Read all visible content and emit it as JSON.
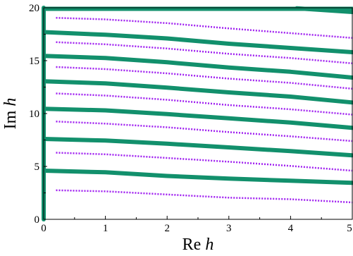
{
  "colors": {
    "solid": "#12906c",
    "dotted": "#a020f0",
    "axis": "#000000"
  },
  "chart_data": {
    "type": "line",
    "xlim": [
      0,
      5
    ],
    "ylim": [
      0,
      20
    ],
    "xticks": [
      0,
      1,
      2,
      3,
      4,
      5
    ],
    "yticks": [
      0,
      5,
      10,
      15,
      20
    ],
    "xlabel": {
      "main": "Re ",
      "var": "h"
    },
    "ylabel": {
      "main": "Im ",
      "var": "h"
    },
    "grid": false,
    "series": [
      {
        "style": "solid",
        "points": [
          [
            0,
            0
          ],
          [
            0,
            20
          ]
        ]
      },
      {
        "style": "solid",
        "points": [
          [
            0,
            19.9
          ],
          [
            5,
            19.9
          ]
        ]
      },
      {
        "style": "solid",
        "points": [
          [
            4.1,
            19.95
          ],
          [
            5,
            19.6
          ]
        ]
      },
      {
        "style": "solid",
        "points": [
          [
            0,
            17.7
          ],
          [
            1,
            17.45
          ],
          [
            2,
            17.1
          ],
          [
            3,
            16.6
          ],
          [
            4,
            16.2
          ],
          [
            5,
            15.8
          ]
        ]
      },
      {
        "style": "solid",
        "points": [
          [
            0,
            15.45
          ],
          [
            1,
            15.25
          ],
          [
            2,
            14.85
          ],
          [
            3,
            14.35
          ],
          [
            4,
            13.95
          ],
          [
            5,
            13.4
          ]
        ]
      },
      {
        "style": "solid",
        "points": [
          [
            0,
            13.05
          ],
          [
            1,
            12.85
          ],
          [
            2,
            12.45
          ],
          [
            3,
            12.0
          ],
          [
            4,
            11.6
          ],
          [
            5,
            11.05
          ]
        ]
      },
      {
        "style": "solid",
        "points": [
          [
            0,
            10.45
          ],
          [
            1,
            10.3
          ],
          [
            2,
            9.95
          ],
          [
            3,
            9.55
          ],
          [
            4,
            9.15
          ],
          [
            5,
            8.65
          ]
        ]
      },
      {
        "style": "solid",
        "points": [
          [
            0,
            7.6
          ],
          [
            1,
            7.45
          ],
          [
            2,
            7.15
          ],
          [
            3,
            6.8
          ],
          [
            4,
            6.45
          ],
          [
            5,
            6.05
          ]
        ]
      },
      {
        "style": "solid",
        "points": [
          [
            0,
            4.6
          ],
          [
            1,
            4.45
          ],
          [
            2,
            4.1
          ],
          [
            3,
            3.85
          ],
          [
            4,
            3.65
          ],
          [
            5,
            3.45
          ]
        ]
      },
      {
        "style": "dotted",
        "points": [
          [
            0.2,
            19.05
          ],
          [
            1,
            18.9
          ],
          [
            2,
            18.55
          ],
          [
            3,
            18.05
          ],
          [
            4,
            17.6
          ],
          [
            5,
            17.15
          ]
        ]
      },
      {
        "style": "dotted",
        "points": [
          [
            0.2,
            16.75
          ],
          [
            1,
            16.55
          ],
          [
            2,
            16.15
          ],
          [
            3,
            15.65
          ],
          [
            4,
            15.25
          ],
          [
            5,
            14.75
          ]
        ]
      },
      {
        "style": "dotted",
        "points": [
          [
            0.2,
            14.4
          ],
          [
            1,
            14.2
          ],
          [
            2,
            13.8
          ],
          [
            3,
            13.3
          ],
          [
            4,
            12.9
          ],
          [
            5,
            12.35
          ]
        ]
      },
      {
        "style": "dotted",
        "points": [
          [
            0.2,
            11.9
          ],
          [
            1,
            11.7
          ],
          [
            2,
            11.3
          ],
          [
            3,
            10.8
          ],
          [
            4,
            10.4
          ],
          [
            5,
            9.9
          ]
        ]
      },
      {
        "style": "dotted",
        "points": [
          [
            0.2,
            9.25
          ],
          [
            1,
            9.05
          ],
          [
            2,
            8.7
          ],
          [
            3,
            8.25
          ],
          [
            4,
            7.85
          ],
          [
            5,
            7.4
          ]
        ]
      },
      {
        "style": "dotted",
        "points": [
          [
            0.2,
            6.3
          ],
          [
            1,
            6.15
          ],
          [
            2,
            5.8
          ],
          [
            3,
            5.45
          ],
          [
            4,
            5.05
          ],
          [
            5,
            4.6
          ]
        ]
      },
      {
        "style": "dotted",
        "points": [
          [
            0.2,
            2.75
          ],
          [
            1,
            2.65
          ],
          [
            2,
            2.35
          ],
          [
            3,
            2.05
          ],
          [
            4,
            1.9
          ],
          [
            5,
            1.6
          ]
        ]
      }
    ]
  }
}
